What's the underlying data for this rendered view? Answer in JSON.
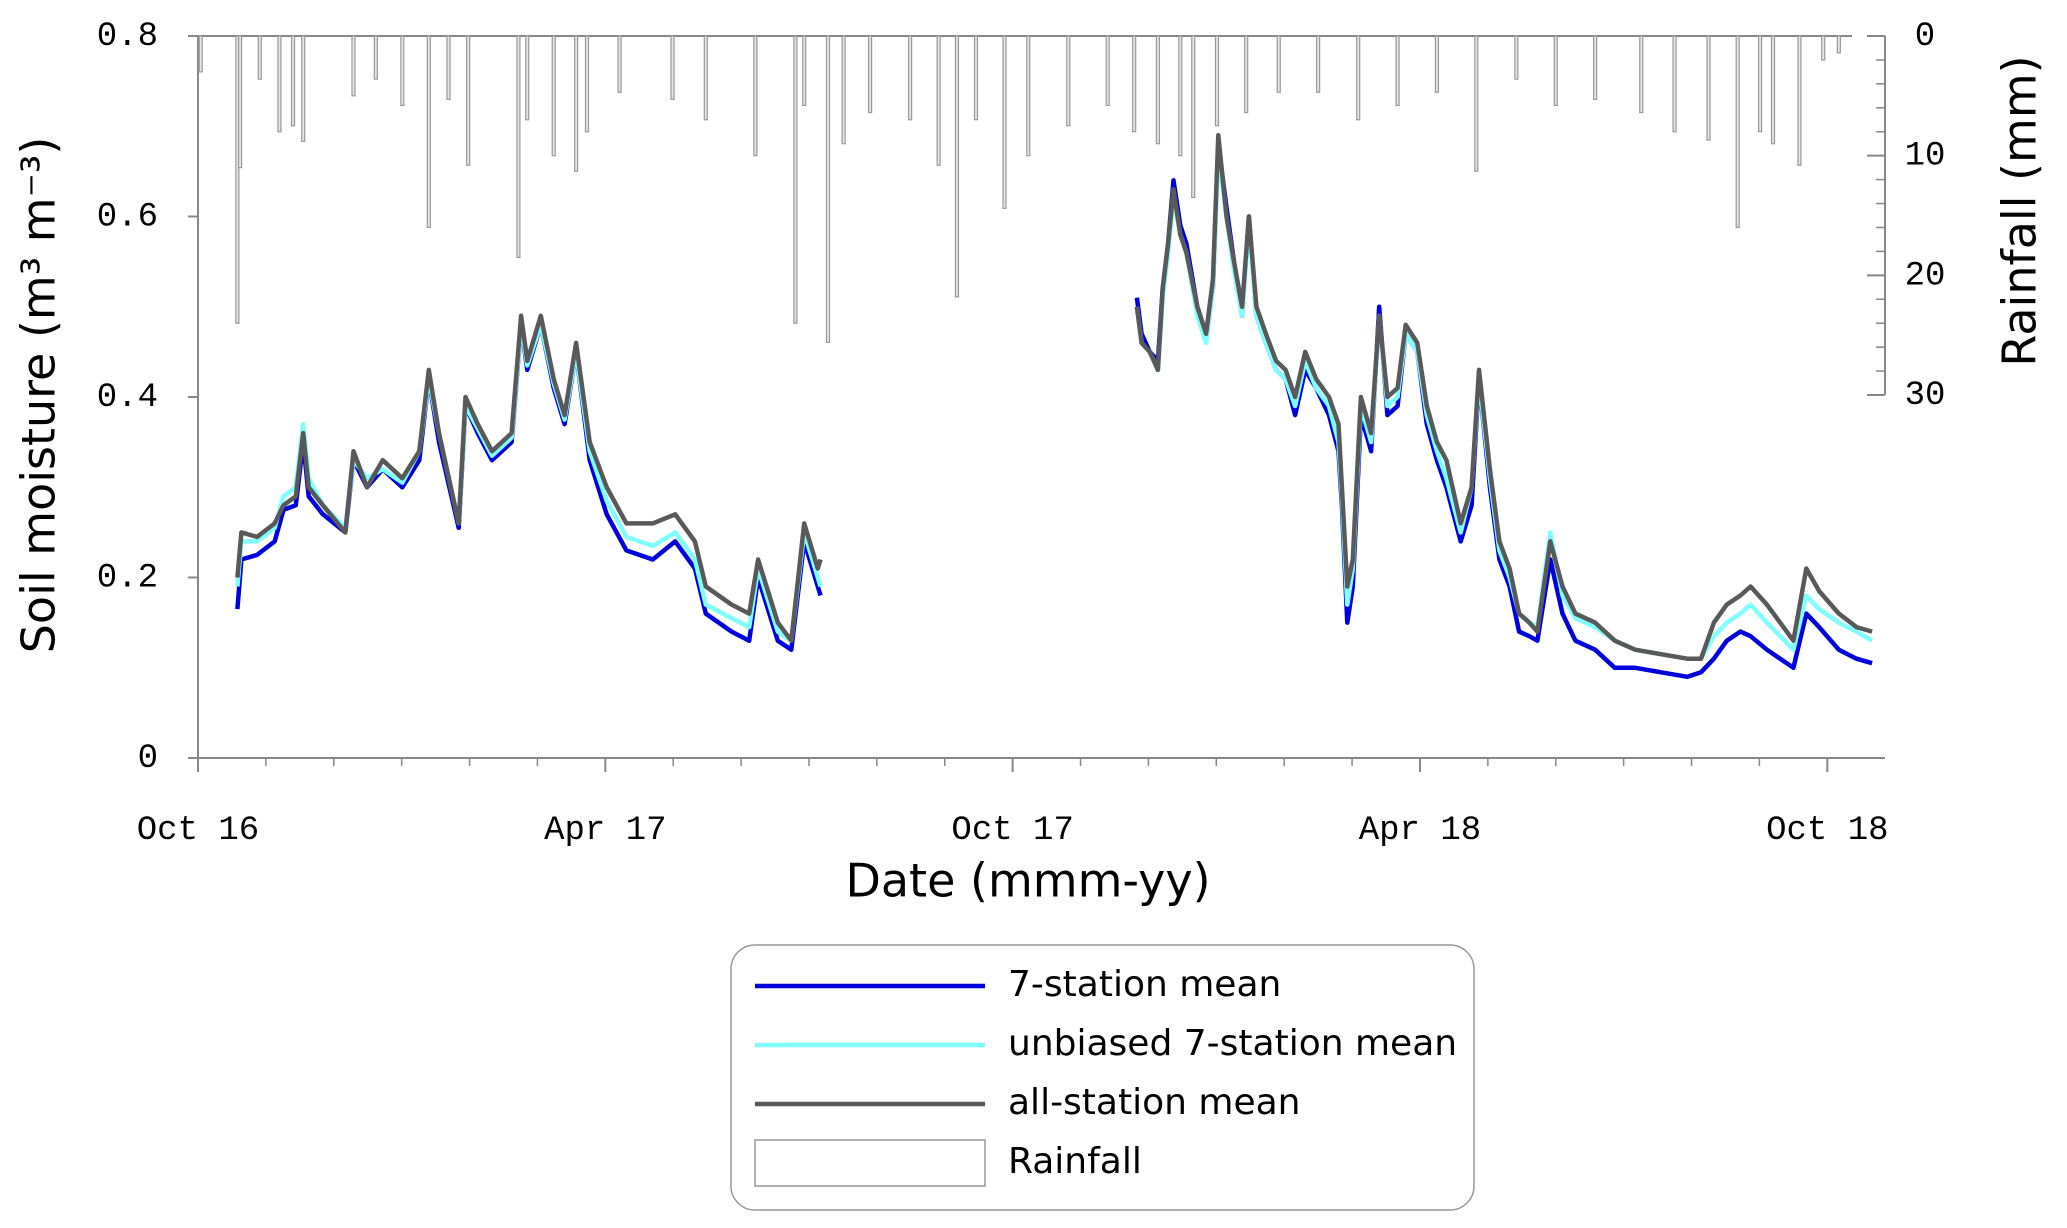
{
  "chart_data": {
    "type": "line",
    "xlabel": "Date (mmm-yy)",
    "ylabel": "Soil moisture (m³ m⁻³)",
    "y2label": "Rainfall (mm)",
    "xlim": [
      0,
      24.85
    ],
    "xticks": [
      {
        "value": 0,
        "label": "Oct 16"
      },
      {
        "value": 6,
        "label": "Apr 17"
      },
      {
        "value": 12,
        "label": "Oct 17"
      },
      {
        "value": 18,
        "label": "Apr 18"
      },
      {
        "value": 24,
        "label": "Oct 18"
      }
    ],
    "xminor_ticks": [
      1,
      2,
      3,
      4,
      5,
      7,
      8,
      9,
      10,
      11,
      13,
      14,
      15,
      16,
      17,
      19,
      20,
      21,
      22,
      23
    ],
    "ylim": [
      0,
      0.8
    ],
    "yticks": [
      0,
      0.2,
      0.4,
      0.6,
      0.8
    ],
    "y2lim": [
      0,
      30
    ],
    "y2ticks": [
      0,
      10,
      20,
      30
    ],
    "y2minor_ticks": [
      2,
      4,
      6,
      8,
      12,
      14,
      16,
      18,
      22,
      24,
      26,
      28
    ],
    "y2_inverted": true,
    "x": [
      0.58,
      0.64,
      0.87,
      1.13,
      1.26,
      1.44,
      1.55,
      1.63,
      1.84,
      2.17,
      2.29,
      2.49,
      2.72,
      3.01,
      3.26,
      3.4,
      3.55,
      3.84,
      3.94,
      4.12,
      4.33,
      4.62,
      4.76,
      4.85,
      5.05,
      5.24,
      5.4,
      5.57,
      5.77,
      6.02,
      6.31,
      6.7,
      7.03,
      7.32,
      7.48,
      7.86,
      8.12,
      8.25,
      8.54,
      8.74,
      8.93,
      9.13,
      9.17,
      11.5,
      13.83,
      13.9,
      14.02,
      14.14,
      14.21,
      14.29,
      14.37,
      14.47,
      14.56,
      14.72,
      14.85,
      14.95,
      15.03,
      15.15,
      15.26,
      15.38,
      15.48,
      15.59,
      15.73,
      15.88,
      16.02,
      16.16,
      16.31,
      16.47,
      16.66,
      16.8,
      16.85,
      16.93,
      17.01,
      17.13,
      17.28,
      17.4,
      17.52,
      17.67,
      17.79,
      17.96,
      18.1,
      18.25,
      18.39,
      18.6,
      18.76,
      18.87,
      19.03,
      19.17,
      19.32,
      19.46,
      19.61,
      19.73,
      19.92,
      20.1,
      20.29,
      20.58,
      20.87,
      21.17,
      21.55,
      21.94,
      22.14,
      22.33,
      22.52,
      22.72,
      22.87,
      23.11,
      23.5,
      23.69,
      23.88,
      24.17,
      24.43,
      24.66
    ],
    "series": [
      {
        "name": "7-station mean",
        "color": "#0000dd",
        "values": [
          0.165,
          0.22,
          0.225,
          0.24,
          0.275,
          0.28,
          0.35,
          0.29,
          0.27,
          0.25,
          0.33,
          0.3,
          0.32,
          0.3,
          0.33,
          0.42,
          0.35,
          0.255,
          0.39,
          0.36,
          0.33,
          0.35,
          0.48,
          0.43,
          0.48,
          0.41,
          0.37,
          0.45,
          0.33,
          0.27,
          0.23,
          0.22,
          0.24,
          0.21,
          0.16,
          0.14,
          0.13,
          0.2,
          0.13,
          0.12,
          0.24,
          0.19,
          0.18,
          null,
          0.51,
          0.47,
          0.45,
          0.44,
          0.52,
          0.57,
          0.64,
          0.59,
          0.57,
          0.5,
          0.47,
          0.52,
          0.68,
          0.61,
          0.55,
          0.49,
          0.6,
          0.49,
          0.46,
          0.43,
          0.42,
          0.38,
          0.43,
          0.41,
          0.38,
          0.34,
          0.28,
          0.15,
          0.19,
          0.38,
          0.34,
          0.5,
          0.38,
          0.39,
          0.47,
          0.45,
          0.37,
          0.33,
          0.3,
          0.24,
          0.28,
          0.42,
          0.3,
          0.22,
          0.19,
          0.14,
          0.135,
          0.13,
          0.22,
          0.16,
          0.13,
          0.12,
          0.1,
          0.1,
          0.095,
          0.09,
          0.095,
          0.11,
          0.13,
          0.14,
          0.135,
          0.12,
          0.1,
          0.16,
          0.145,
          0.12,
          0.11,
          0.105
        ]
      },
      {
        "name": "unbiased 7-station mean",
        "color": "#80ffff",
        "values": [
          0.19,
          0.24,
          0.24,
          0.255,
          0.29,
          0.3,
          0.37,
          0.31,
          0.28,
          0.255,
          0.33,
          0.31,
          0.32,
          0.305,
          0.34,
          0.42,
          0.36,
          0.26,
          0.39,
          0.365,
          0.335,
          0.355,
          0.48,
          0.435,
          0.48,
          0.415,
          0.375,
          0.45,
          0.34,
          0.285,
          0.245,
          0.235,
          0.25,
          0.22,
          0.17,
          0.155,
          0.145,
          0.21,
          0.14,
          0.13,
          0.25,
          0.2,
          0.19,
          null,
          0.5,
          0.46,
          0.45,
          0.43,
          0.51,
          0.56,
          0.62,
          0.58,
          0.56,
          0.49,
          0.46,
          0.52,
          0.67,
          0.6,
          0.54,
          0.49,
          0.59,
          0.49,
          0.46,
          0.43,
          0.42,
          0.39,
          0.44,
          0.41,
          0.39,
          0.35,
          0.29,
          0.17,
          0.21,
          0.39,
          0.35,
          0.49,
          0.39,
          0.4,
          0.47,
          0.45,
          0.38,
          0.34,
          0.31,
          0.25,
          0.3,
          0.42,
          0.31,
          0.23,
          0.2,
          0.16,
          0.15,
          0.145,
          0.25,
          0.18,
          0.155,
          0.145,
          0.13,
          0.12,
          0.115,
          0.11,
          0.11,
          0.135,
          0.15,
          0.16,
          0.17,
          0.15,
          0.12,
          0.18,
          0.165,
          0.15,
          0.14,
          0.13
        ]
      },
      {
        "name": "all-station mean",
        "color": "#595959",
        "values": [
          0.2,
          0.25,
          0.245,
          0.26,
          0.28,
          0.29,
          0.36,
          0.3,
          0.28,
          0.25,
          0.34,
          0.3,
          0.33,
          0.31,
          0.34,
          0.43,
          0.36,
          0.26,
          0.4,
          0.37,
          0.34,
          0.36,
          0.49,
          0.44,
          0.49,
          0.42,
          0.38,
          0.46,
          0.35,
          0.3,
          0.26,
          0.26,
          0.27,
          0.24,
          0.19,
          0.17,
          0.16,
          0.22,
          0.15,
          0.13,
          0.26,
          0.21,
          0.22,
          null,
          0.5,
          0.46,
          0.45,
          0.43,
          0.52,
          0.57,
          0.63,
          0.58,
          0.56,
          0.5,
          0.47,
          0.53,
          0.69,
          0.6,
          0.55,
          0.5,
          0.6,
          0.5,
          0.47,
          0.44,
          0.43,
          0.4,
          0.45,
          0.42,
          0.4,
          0.37,
          0.3,
          0.19,
          0.22,
          0.4,
          0.36,
          0.49,
          0.4,
          0.41,
          0.48,
          0.46,
          0.39,
          0.35,
          0.33,
          0.26,
          0.3,
          0.43,
          0.32,
          0.24,
          0.21,
          0.16,
          0.15,
          0.14,
          0.24,
          0.19,
          0.16,
          0.15,
          0.13,
          0.12,
          0.115,
          0.11,
          0.11,
          0.15,
          0.17,
          0.18,
          0.19,
          0.17,
          0.13,
          0.21,
          0.185,
          0.16,
          0.145,
          0.14
        ]
      },
      {
        "name": "Rainfall",
        "type": "bar",
        "axis": "y2",
        "color": "#999999",
        "x": [
          0.04,
          0.58,
          0.62,
          0.91,
          1.2,
          1.4,
          1.55,
          2.29,
          2.62,
          3.01,
          3.4,
          3.69,
          3.98,
          4.72,
          4.85,
          5.24,
          5.57,
          5.73,
          6.21,
          6.99,
          7.48,
          8.21,
          8.8,
          8.93,
          9.28,
          9.51,
          9.9,
          10.49,
          10.91,
          11.18,
          11.46,
          11.88,
          12.23,
          12.82,
          13.4,
          13.79,
          14.14,
          14.47,
          14.66,
          15.01,
          15.44,
          15.92,
          16.5,
          17.09,
          17.67,
          18.25,
          18.83,
          19.42,
          20,
          20.58,
          21.26,
          21.75,
          22.25,
          22.68,
          23.01,
          23.2,
          23.59,
          23.94,
          24.17
        ],
        "values": [
          3,
          24,
          11,
          3.6,
          8,
          7.5,
          8.8,
          5,
          3.6,
          5.8,
          16,
          5.3,
          10.8,
          18.5,
          7,
          10,
          11.3,
          8,
          4.7,
          5.3,
          7,
          10,
          24,
          5.8,
          25.6,
          9,
          6.4,
          7,
          10.8,
          21.8,
          7,
          14.4,
          10,
          7.5,
          5.8,
          8,
          9,
          10,
          13.5,
          7.5,
          6.4,
          4.7,
          4.7,
          7,
          5.8,
          4.7,
          11.3,
          3.6,
          5.8,
          5.3,
          6.4,
          8,
          8.7,
          16,
          8,
          9,
          10.8,
          2,
          1.4
        ]
      }
    ]
  }
}
